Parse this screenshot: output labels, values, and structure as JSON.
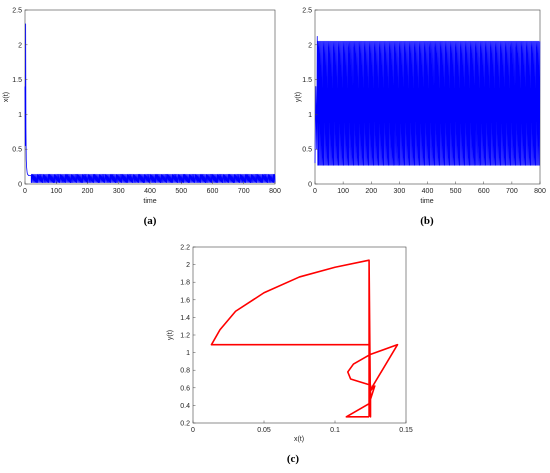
{
  "panels": [
    {
      "caption": "(a)",
      "chart_data": {
        "type": "line",
        "xlabel": "time",
        "ylabel": "x(t)",
        "xlim": [
          0,
          800
        ],
        "ylim": [
          0,
          2.5
        ],
        "xticks": [
          0,
          100,
          200,
          300,
          400,
          500,
          600,
          700,
          800
        ],
        "yticks": [
          0,
          0.5,
          1,
          1.5,
          2,
          2.5
        ],
        "series": [
          {
            "color": "#0000ff",
            "transient": {
              "t": [
                0,
                1,
                2,
                3,
                4,
                5,
                6,
                7,
                8,
                10,
                12,
                15,
                20
              ],
              "v": [
                1.4,
                0.55,
                2.3,
                0.8,
                0.35,
                0.25,
                0.2,
                0.16,
                0.14,
                0.13,
                0.12,
                0.12,
                0.12
              ]
            },
            "oscillation": {
              "t_start": 20,
              "t_end": 800,
              "min": 0.02,
              "max": 0.14,
              "period": 18
            }
          }
        ]
      }
    },
    {
      "caption": "(b)",
      "chart_data": {
        "type": "line",
        "xlabel": "time",
        "ylabel": "y(t)",
        "xlim": [
          0,
          800
        ],
        "ylim": [
          0,
          2.5
        ],
        "xticks": [
          0,
          100,
          200,
          300,
          400,
          500,
          600,
          700,
          800
        ],
        "yticks": [
          0,
          0.5,
          1,
          1.5,
          2,
          2.5
        ],
        "series": [
          {
            "color": "#0000ff",
            "transient": {
              "t": [
                0,
                3,
                6,
                8,
                10
              ],
              "v": [
                0.3,
                1.4,
                0.5,
                2.12,
                0.28
              ]
            },
            "oscillation": {
              "t_start": 10,
              "t_end": 800,
              "min": 0.27,
              "max": 2.05,
              "period": 18
            }
          }
        ]
      }
    },
    {
      "caption": "(c)",
      "chart_data": {
        "type": "line",
        "xlabel": "x(t)",
        "ylabel": "y(t)",
        "xlim": [
          0,
          0.15
        ],
        "ylim": [
          0.2,
          2.2
        ],
        "xticks": [
          0,
          0.05,
          0.1,
          0.15
        ],
        "yticks": [
          0.2,
          0.4,
          0.6,
          0.8,
          1,
          1.2,
          1.4,
          1.6,
          1.8,
          2,
          2.2
        ],
        "series": [
          {
            "color": "#ff0000",
            "x": [
              0.124,
              0.1125,
              0.108,
              0.124,
              0.128,
              0.124,
              0.144,
              0.125,
              0.113,
              0.109,
              0.111,
              0.125,
              0.125,
              0.124,
              0.1,
              0.075,
              0.05,
              0.03,
              0.019,
              0.013,
              0.06,
              0.124,
              0.124,
              0.124
            ],
            "y": [
              0.27,
              0.27,
              0.27,
              0.42,
              0.62,
              0.55,
              1.09,
              0.98,
              0.87,
              0.78,
              0.7,
              0.63,
              0.27,
              2.05,
              1.97,
              1.86,
              1.68,
              1.47,
              1.26,
              1.09,
              1.09,
              1.09,
              2.05,
              0.27
            ]
          }
        ]
      }
    }
  ]
}
